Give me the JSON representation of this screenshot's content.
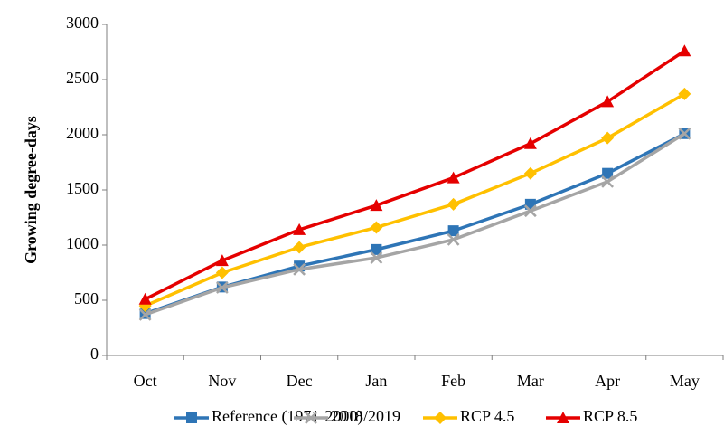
{
  "chart_data": {
    "type": "line",
    "y_label": "Growing degree-days",
    "categories": [
      "Oct",
      "Nov",
      "Dec",
      "Jan",
      "Feb",
      "Mar",
      "Apr",
      "May"
    ],
    "series": [
      {
        "name": "Reference (1971-2000)",
        "color": "#2e75b6",
        "marker": "square",
        "values": [
          380,
          620,
          810,
          960,
          1130,
          1370,
          1650,
          2010
        ]
      },
      {
        "name": "2018/2019",
        "color": "#a5a5a5",
        "marker": "x",
        "values": [
          370,
          615,
          780,
          885,
          1050,
          1310,
          1575,
          2010
        ]
      },
      {
        "name": "RCP 4.5",
        "color": "#ffc000",
        "marker": "diamond",
        "values": [
          450,
          750,
          980,
          1160,
          1370,
          1650,
          1970,
          2370
        ]
      },
      {
        "name": "RCP 8.5",
        "color": "#e50000",
        "marker": "triangle",
        "values": [
          510,
          860,
          1140,
          1360,
          1610,
          1920,
          2300,
          2760
        ]
      }
    ],
    "ylim": [
      0,
      3000
    ],
    "yticks": [
      0,
      500,
      1000,
      1500,
      2000,
      2500,
      3000
    ],
    "grid": false,
    "legend": "bottom"
  }
}
